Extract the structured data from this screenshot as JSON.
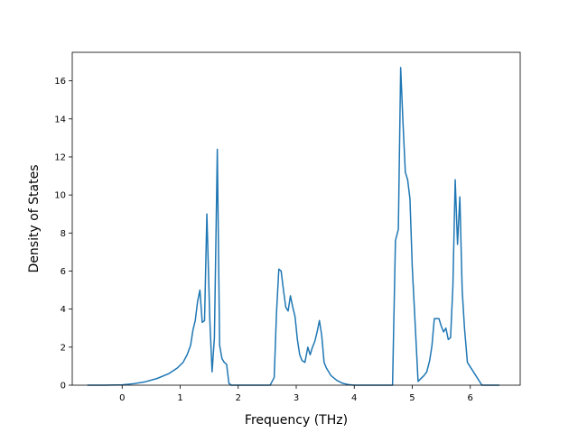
{
  "chart_data": {
    "type": "line",
    "title": "",
    "xlabel": "Frequency (THz)",
    "ylabel": "Density of States",
    "xlim": [
      -0.86,
      6.86
    ],
    "ylim": [
      0,
      17.5
    ],
    "xticks": [
      0,
      1,
      2,
      3,
      4,
      5,
      6
    ],
    "yticks": [
      0,
      2,
      4,
      6,
      8,
      10,
      12,
      14,
      16
    ],
    "grid": false,
    "legend": "none",
    "colors": {
      "line": "#1f77b4",
      "axes": "#000000"
    },
    "series": [
      {
        "x": [
          -0.6,
          -0.3,
          0.0,
          0.2,
          0.4,
          0.6,
          0.8,
          0.95,
          1.05,
          1.12,
          1.18,
          1.22,
          1.26,
          1.3,
          1.34,
          1.38,
          1.42,
          1.46,
          1.51,
          1.55,
          1.59,
          1.64,
          1.68,
          1.72,
          1.76,
          1.8,
          1.84,
          1.88,
          1.95,
          2.3,
          2.55,
          2.62,
          2.66,
          2.7,
          2.74,
          2.78,
          2.82,
          2.86,
          2.9,
          2.94,
          2.98,
          3.02,
          3.06,
          3.1,
          3.15,
          3.2,
          3.24,
          3.28,
          3.32,
          3.36,
          3.4,
          3.44,
          3.48,
          3.52,
          3.6,
          3.7,
          3.8,
          3.9,
          4.0,
          4.1,
          4.2,
          4.4,
          4.66,
          4.71,
          4.76,
          4.8,
          4.84,
          4.88,
          4.92,
          4.96,
          5.0,
          5.1,
          5.2,
          5.25,
          5.3,
          5.34,
          5.38,
          5.42,
          5.46,
          5.5,
          5.54,
          5.58,
          5.62,
          5.66,
          5.7,
          5.74,
          5.78,
          5.82,
          5.86,
          5.9,
          5.95,
          6.2,
          6.5
        ],
        "y": [
          0,
          0,
          0.02,
          0.08,
          0.18,
          0.35,
          0.6,
          0.9,
          1.2,
          1.6,
          2.1,
          2.9,
          3.4,
          4.4,
          5.0,
          3.3,
          3.4,
          9.0,
          3.5,
          0.7,
          2.5,
          12.4,
          2.1,
          1.4,
          1.2,
          1.1,
          0.1,
          0,
          0,
          0,
          0,
          0.4,
          3.8,
          6.1,
          6.0,
          5.0,
          4.1,
          3.9,
          4.7,
          4.1,
          3.6,
          2.4,
          1.6,
          1.3,
          1.2,
          2.0,
          1.6,
          2.0,
          2.3,
          2.8,
          3.4,
          2.6,
          1.2,
          0.9,
          0.5,
          0.25,
          0.1,
          0.03,
          0,
          0,
          0,
          0,
          0,
          7.6,
          8.2,
          16.7,
          13.8,
          11.2,
          10.8,
          9.8,
          6.2,
          0.2,
          0.5,
          0.7,
          1.3,
          2.1,
          3.5,
          3.5,
          3.5,
          3.1,
          2.8,
          3.0,
          2.4,
          2.5,
          5.2,
          10.8,
          7.4,
          9.9,
          5.0,
          3.0,
          1.2,
          0,
          0
        ]
      }
    ]
  }
}
